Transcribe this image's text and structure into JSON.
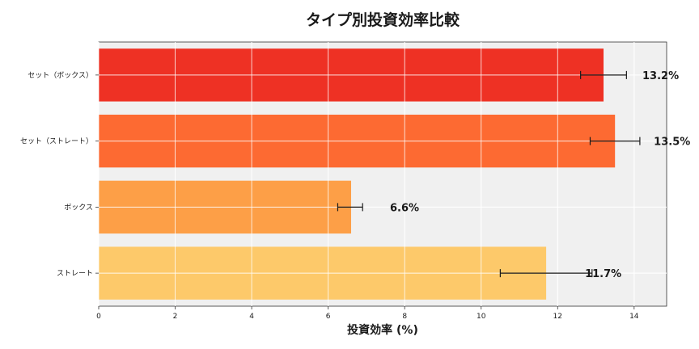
{
  "chart_data": {
    "type": "bar",
    "orientation": "horizontal",
    "title": "タイプ別投資効率比較",
    "xlabel": "投資効率 (%)",
    "ylabel": "",
    "xlim": [
      0,
      14.85
    ],
    "xticks": [
      "0",
      "2",
      "4",
      "6",
      "8",
      "10",
      "12",
      "14"
    ],
    "categories": [
      "セット（ボックス）",
      "セット（ストレート）",
      "ボックス",
      "ストレート"
    ],
    "values": [
      13.2,
      13.5,
      6.6,
      11.7
    ],
    "data_labels": [
      "13.2%",
      "13.5%",
      "6.6%",
      "11.7%"
    ],
    "error_low": [
      12.6,
      12.85,
      6.25,
      10.5
    ],
    "error_high": [
      13.8,
      14.15,
      6.9,
      12.9
    ],
    "colors": [
      "#ee3124",
      "#fd6a32",
      "#fd9f47",
      "#fdc96a"
    ],
    "grid": true,
    "background": "#f0f0f0",
    "legend": "none"
  }
}
